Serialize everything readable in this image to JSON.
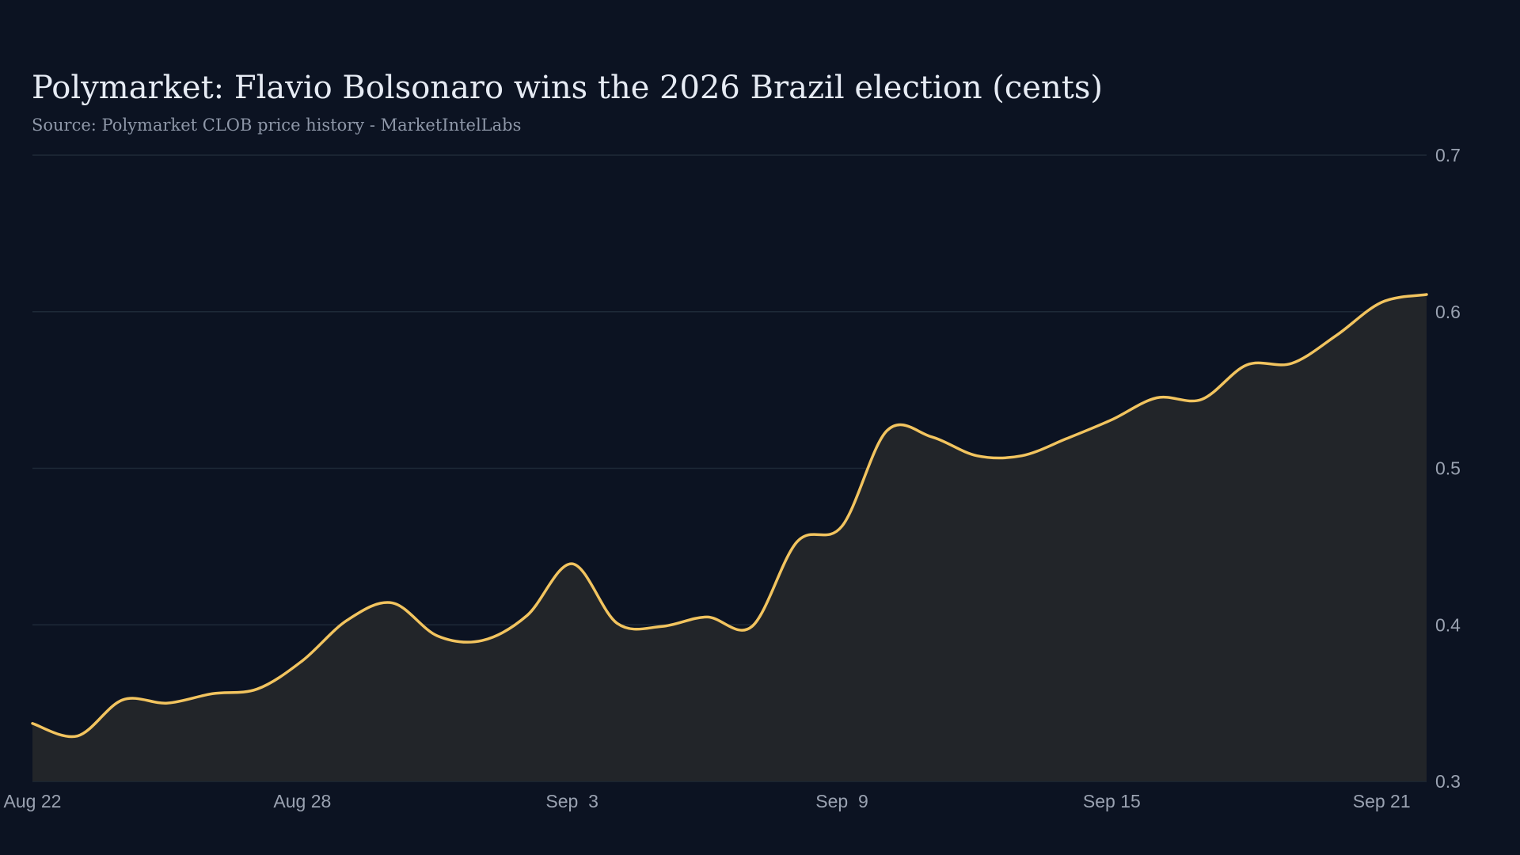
{
  "chart_data": {
    "type": "area",
    "title": "Polymarket: Flavio Bolsonaro wins the 2026 Brazil election (cents)",
    "subtitle": "Source: Polymarket CLOB price history - MarketIntelLabs",
    "xlabel": "",
    "ylabel": "",
    "x_ticks": [
      "Aug 22",
      "Aug 28",
      "Sep  3",
      "Sep  9",
      "Sep 15",
      "Sep 21"
    ],
    "y_ticks": [
      "0.3",
      "0.4",
      "0.5",
      "0.6",
      "0.7"
    ],
    "ylim": [
      0.3,
      0.7
    ],
    "xlim": [
      "2025-08-22",
      "2025-09-22"
    ],
    "y_axis_position": "right",
    "grid": "horizontal",
    "line_color": "#f2c45f",
    "fill_color": "#222529",
    "background_color": "#0c1322",
    "x": [
      "2025-08-22",
      "2025-08-23",
      "2025-08-24",
      "2025-08-25",
      "2025-08-26",
      "2025-08-27",
      "2025-08-28",
      "2025-08-29",
      "2025-08-30",
      "2025-08-31",
      "2025-09-01",
      "2025-09-02",
      "2025-09-03",
      "2025-09-04",
      "2025-09-05",
      "2025-09-06",
      "2025-09-07",
      "2025-09-08",
      "2025-09-09",
      "2025-09-10",
      "2025-09-11",
      "2025-09-12",
      "2025-09-13",
      "2025-09-14",
      "2025-09-15",
      "2025-09-16",
      "2025-09-17",
      "2025-09-18",
      "2025-09-19",
      "2025-09-20",
      "2025-09-21",
      "2025-09-22"
    ],
    "values": [
      0.337,
      0.329,
      0.352,
      0.35,
      0.356,
      0.359,
      0.377,
      0.403,
      0.414,
      0.393,
      0.39,
      0.406,
      0.439,
      0.401,
      0.399,
      0.405,
      0.399,
      0.453,
      0.463,
      0.524,
      0.52,
      0.508,
      0.508,
      0.519,
      0.531,
      0.545,
      0.544,
      0.566,
      0.567,
      0.585,
      0.606,
      0.611
    ]
  }
}
